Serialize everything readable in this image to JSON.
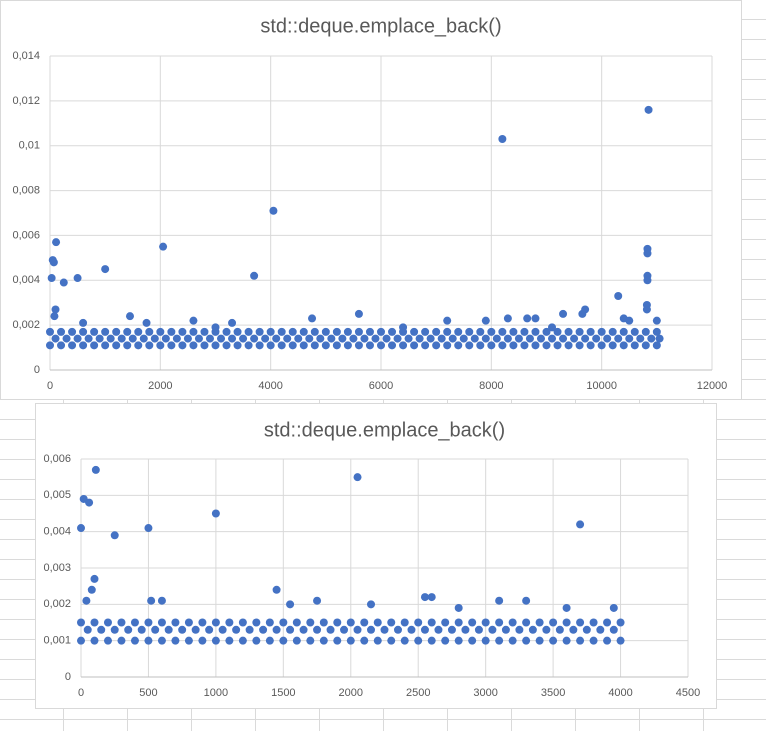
{
  "chart_data": [
    {
      "type": "scatter",
      "title": "std::deque.emplace_back()",
      "grid": true,
      "color": "#4472c4",
      "xlim": [
        0,
        12000
      ],
      "xticks": [
        0,
        2000,
        4000,
        6000,
        8000,
        10000,
        12000
      ],
      "ylim": [
        0,
        0.014
      ],
      "yticks": [
        0,
        {
          "value": 0.002,
          "label": "0,002"
        },
        {
          "value": 0.004,
          "label": "0,004"
        },
        {
          "value": 0.006,
          "label": "0,006"
        },
        {
          "value": 0.008,
          "label": "0,008"
        },
        {
          "value": 0.01,
          "label": "0,01"
        },
        {
          "value": 0.012,
          "label": "0,012"
        },
        {
          "value": 0.014,
          "label": "0,014"
        }
      ],
      "series": [
        {
          "color": "#4472c4",
          "x": [
            0,
            200,
            400,
            600,
            800,
            1000,
            1200,
            1400,
            1600,
            1800,
            2000,
            2200,
            2400,
            2600,
            2800,
            3000,
            3200,
            3400,
            3600,
            3800,
            4000,
            4200,
            4400,
            4600,
            4800,
            5000,
            5200,
            5400,
            5600,
            5800,
            6000,
            6200,
            6400,
            6600,
            6800,
            7000,
            7200,
            7400,
            7600,
            7800,
            8000,
            8200,
            8400,
            8600,
            8800,
            9000,
            9200,
            9400,
            9600,
            9800,
            10000,
            10200,
            10400,
            10600,
            10800,
            11000
          ],
          "values": [
            0.0011,
            0.0011,
            0.0011,
            0.0011,
            0.0011,
            0.0011,
            0.0011,
            0.0011,
            0.0011,
            0.0011,
            0.0011,
            0.0011,
            0.0011,
            0.0011,
            0.0011,
            0.0011,
            0.0011,
            0.0011,
            0.0011,
            0.0011,
            0.0011,
            0.0011,
            0.0011,
            0.0011,
            0.0011,
            0.0011,
            0.0011,
            0.0011,
            0.0011,
            0.0011,
            0.0011,
            0.0011,
            0.0011,
            0.0011,
            0.0011,
            0.0011,
            0.0011,
            0.0011,
            0.0011,
            0.0011,
            0.0011,
            0.0011,
            0.0011,
            0.0011,
            0.0011,
            0.0011,
            0.0011,
            0.0011,
            0.0011,
            0.0011,
            0.0011,
            0.0011,
            0.0011,
            0.0011,
            0.0011,
            0.0011
          ]
        },
        {
          "color": "#4472c4",
          "x": [
            100,
            300,
            500,
            700,
            900,
            1100,
            1300,
            1500,
            1700,
            1900,
            2100,
            2300,
            2500,
            2700,
            2900,
            3100,
            3300,
            3500,
            3700,
            3900,
            4100,
            4300,
            4500,
            4700,
            4900,
            5100,
            5300,
            5500,
            5700,
            5900,
            6100,
            6300,
            6500,
            6700,
            6900,
            7100,
            7300,
            7500,
            7700,
            7900,
            8100,
            8300,
            8500,
            8700,
            8900,
            9100,
            9300,
            9500,
            9700,
            9900,
            10100,
            10300,
            10500,
            10700,
            10900,
            11050
          ],
          "values": [
            0.0014,
            0.0014,
            0.0014,
            0.0014,
            0.0014,
            0.0014,
            0.0014,
            0.0014,
            0.0014,
            0.0014,
            0.0014,
            0.0014,
            0.0014,
            0.0014,
            0.0014,
            0.0014,
            0.0014,
            0.0014,
            0.0014,
            0.0014,
            0.0014,
            0.0014,
            0.0014,
            0.0014,
            0.0014,
            0.0014,
            0.0014,
            0.0014,
            0.0014,
            0.0014,
            0.0014,
            0.0014,
            0.0014,
            0.0014,
            0.0014,
            0.0014,
            0.0014,
            0.0014,
            0.0014,
            0.0014,
            0.0014,
            0.0014,
            0.0014,
            0.0014,
            0.0014,
            0.0014,
            0.0014,
            0.0014,
            0.0014,
            0.0014,
            0.0014,
            0.0014,
            0.0014,
            0.0014,
            0.0014,
            0.0014
          ]
        },
        {
          "color": "#4472c4",
          "x": [
            0,
            200,
            400,
            600,
            800,
            1000,
            1200,
            1400,
            1600,
            1800,
            2000,
            2200,
            2400,
            2600,
            2800,
            3000,
            3200,
            3400,
            3600,
            3800,
            4000,
            4200,
            4400,
            4600,
            4800,
            5000,
            5200,
            5400,
            5600,
            5800,
            6000,
            6200,
            6400,
            6600,
            6800,
            7000,
            7200,
            7400,
            7600,
            7800,
            8000,
            8200,
            8400,
            8600,
            8800,
            9000,
            9200,
            9400,
            9600,
            9800,
            10000,
            10200,
            10400,
            10600,
            10800,
            11000
          ],
          "values": [
            0.0017,
            0.0017,
            0.0017,
            0.0017,
            0.0017,
            0.0017,
            0.0017,
            0.0017,
            0.0017,
            0.0017,
            0.0017,
            0.0017,
            0.0017,
            0.0017,
            0.0017,
            0.0017,
            0.0017,
            0.0017,
            0.0017,
            0.0017,
            0.0017,
            0.0017,
            0.0017,
            0.0017,
            0.0017,
            0.0017,
            0.0017,
            0.0017,
            0.0017,
            0.0017,
            0.0017,
            0.0017,
            0.0017,
            0.0017,
            0.0017,
            0.0017,
            0.0017,
            0.0017,
            0.0017,
            0.0017,
            0.0017,
            0.0017,
            0.0017,
            0.0017,
            0.0017,
            0.0017,
            0.0017,
            0.0017,
            0.0017,
            0.0017,
            0.0017,
            0.0017,
            0.0017,
            0.0017,
            0.0017,
            0.0017
          ]
        },
        {
          "color": "#4472c4",
          "x": [
            30,
            50,
            70,
            110,
            250,
            500,
            1000,
            2050,
            3700,
            4050,
            8200,
            10850,
            10830,
            10830,
            10830,
            10830,
            10300,
            10820,
            10820,
            100,
            80,
            1450,
            1750,
            2600,
            3300,
            4750,
            5600,
            7200,
            7900,
            8300,
            8650,
            8800,
            9300,
            9650,
            9700,
            10400,
            10500,
            11000,
            600,
            3000,
            6400,
            9100
          ],
          "values": [
            0.0041,
            0.0049,
            0.0048,
            0.0057,
            0.0039,
            0.0041,
            0.0045,
            0.0055,
            0.0042,
            0.0071,
            0.0103,
            0.0116,
            0.0054,
            0.0052,
            0.0042,
            0.004,
            0.0033,
            0.0029,
            0.0027,
            0.0027,
            0.0024,
            0.0024,
            0.0021,
            0.0022,
            0.0021,
            0.0023,
            0.0025,
            0.0022,
            0.0022,
            0.0023,
            0.0023,
            0.0023,
            0.0025,
            0.0025,
            0.0027,
            0.0023,
            0.0022,
            0.0022,
            0.0021,
            0.0019,
            0.0019,
            0.0019
          ]
        }
      ]
    },
    {
      "type": "scatter",
      "title": "std::deque.emplace_back()",
      "grid": true,
      "color": "#4472c4",
      "xlim": [
        0,
        4500
      ],
      "xticks": [
        0,
        500,
        1000,
        1500,
        2000,
        2500,
        3000,
        3500,
        4000,
        4500
      ],
      "ylim": [
        0,
        0.006
      ],
      "yticks": [
        0,
        {
          "value": 0.001,
          "label": "0,001"
        },
        {
          "value": 0.002,
          "label": "0,002"
        },
        {
          "value": 0.003,
          "label": "0,003"
        },
        {
          "value": 0.004,
          "label": "0,004"
        },
        {
          "value": 0.005,
          "label": "0,005"
        },
        {
          "value": 0.006,
          "label": "0,006"
        }
      ],
      "series": [
        {
          "color": "#4472c4",
          "x": [
            0,
            100,
            200,
            300,
            400,
            500,
            600,
            700,
            800,
            900,
            1000,
            1100,
            1200,
            1300,
            1400,
            1500,
            1600,
            1700,
            1800,
            1900,
            2000,
            2100,
            2200,
            2300,
            2400,
            2500,
            2600,
            2700,
            2800,
            2900,
            3000,
            3100,
            3200,
            3300,
            3400,
            3500,
            3600,
            3700,
            3800,
            3900,
            4000
          ],
          "values": [
            0.001,
            0.001,
            0.001,
            0.001,
            0.001,
            0.001,
            0.001,
            0.001,
            0.001,
            0.001,
            0.001,
            0.001,
            0.001,
            0.001,
            0.001,
            0.001,
            0.001,
            0.001,
            0.001,
            0.001,
            0.001,
            0.001,
            0.001,
            0.001,
            0.001,
            0.001,
            0.001,
            0.001,
            0.001,
            0.001,
            0.001,
            0.001,
            0.001,
            0.001,
            0.001,
            0.001,
            0.001,
            0.001,
            0.001,
            0.001,
            0.001
          ]
        },
        {
          "color": "#4472c4",
          "x": [
            50,
            150,
            250,
            350,
            450,
            550,
            650,
            750,
            850,
            950,
            1050,
            1150,
            1250,
            1350,
            1450,
            1550,
            1650,
            1750,
            1850,
            1950,
            2050,
            2150,
            2250,
            2350,
            2450,
            2550,
            2650,
            2750,
            2850,
            2950,
            3050,
            3150,
            3250,
            3350,
            3450,
            3550,
            3650,
            3750,
            3850,
            3950
          ],
          "values": [
            0.0013,
            0.0013,
            0.0013,
            0.0013,
            0.0013,
            0.0013,
            0.0013,
            0.0013,
            0.0013,
            0.0013,
            0.0013,
            0.0013,
            0.0013,
            0.0013,
            0.0013,
            0.0013,
            0.0013,
            0.0013,
            0.0013,
            0.0013,
            0.0013,
            0.0013,
            0.0013,
            0.0013,
            0.0013,
            0.0013,
            0.0013,
            0.0013,
            0.0013,
            0.0013,
            0.0013,
            0.0013,
            0.0013,
            0.0013,
            0.0013,
            0.0013,
            0.0013,
            0.0013,
            0.0013,
            0.0013
          ]
        },
        {
          "color": "#4472c4",
          "x": [
            0,
            100,
            200,
            300,
            400,
            500,
            600,
            700,
            800,
            900,
            1000,
            1100,
            1200,
            1300,
            1400,
            1500,
            1600,
            1700,
            1800,
            1900,
            2000,
            2100,
            2200,
            2300,
            2400,
            2500,
            2600,
            2700,
            2800,
            2900,
            3000,
            3100,
            3200,
            3300,
            3400,
            3500,
            3600,
            3700,
            3800,
            3900,
            4000
          ],
          "values": [
            0.0015,
            0.0015,
            0.0015,
            0.0015,
            0.0015,
            0.0015,
            0.0015,
            0.0015,
            0.0015,
            0.0015,
            0.0015,
            0.0015,
            0.0015,
            0.0015,
            0.0015,
            0.0015,
            0.0015,
            0.0015,
            0.0015,
            0.0015,
            0.0015,
            0.0015,
            0.0015,
            0.0015,
            0.0015,
            0.0015,
            0.0015,
            0.0015,
            0.0015,
            0.0015,
            0.0015,
            0.0015,
            0.0015,
            0.0015,
            0.0015,
            0.0015,
            0.0015,
            0.0015,
            0.0015,
            0.0015,
            0.0015
          ]
        },
        {
          "color": "#4472c4",
          "x": [
            0,
            20,
            60,
            110,
            250,
            500,
            1000,
            2050,
            3700,
            100,
            80,
            1450,
            1550,
            520,
            600,
            2550,
            2600,
            3100,
            3300,
            1750,
            2150,
            3950,
            3600,
            2800,
            40
          ],
          "values": [
            0.0041,
            0.0049,
            0.0048,
            0.0057,
            0.0039,
            0.0041,
            0.0045,
            0.0055,
            0.0042,
            0.0027,
            0.0024,
            0.0024,
            0.002,
            0.0021,
            0.0021,
            0.0022,
            0.0022,
            0.0021,
            0.0021,
            0.0021,
            0.002,
            0.0019,
            0.0019,
            0.0019,
            0.0021
          ]
        }
      ]
    }
  ]
}
